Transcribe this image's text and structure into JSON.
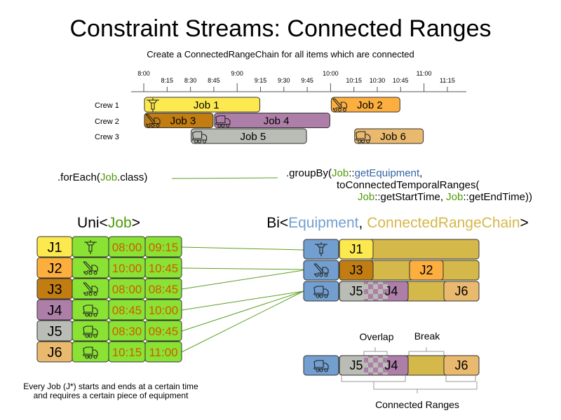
{
  "title": "Constraint Streams: Connected Ranges",
  "subtitle": "Create a ConnectedRangeChain for all items which are connected",
  "colors": {
    "job1": "#fce94f",
    "job2": "#fcaf3e",
    "job3": "#c17d11",
    "job4": "#ad7fa8",
    "job5": "#babdb6",
    "job6": "#e9b96e",
    "green": "#8ae234",
    "equipment": "#729fcf",
    "chain": "#d4b84a",
    "time": "#ce5c00",
    "code_green": "#4e9a06",
    "code_blue": "#3465a4"
  },
  "timeline": {
    "hour_ticks": [
      "8:00",
      "9:00",
      "10:00",
      "11:00"
    ],
    "quarter_ticks": [
      "8:15",
      "8:30",
      "8:45",
      "9:15",
      "9:30",
      "9:45",
      "10:15",
      "10:30",
      "10:45",
      "11:15"
    ],
    "crews": [
      "Crew 1",
      "Crew 2",
      "Crew 3"
    ],
    "jobs": [
      {
        "label": "Job 1",
        "crew": 1,
        "start": "8:00",
        "end": "9:15",
        "icon": "jackhammer-icon"
      },
      {
        "label": "Job 2",
        "crew": 1,
        "start": "10:00",
        "end": "10:45",
        "icon": "crane-truck-icon"
      },
      {
        "label": "Job 3",
        "crew": 2,
        "start": "8:00",
        "end": "8:45",
        "icon": "crane-truck-icon"
      },
      {
        "label": "Job 4",
        "crew": 2,
        "start": "8:45",
        "end": "10:00",
        "icon": "dump-truck-icon"
      },
      {
        "label": "Job 5",
        "crew": 3,
        "start": "8:30",
        "end": "9:45",
        "icon": "dump-truck-icon"
      },
      {
        "label": "Job 6",
        "crew": 3,
        "start": "10:15",
        "end": "11:00",
        "icon": "dump-truck-icon"
      }
    ]
  },
  "code": {
    "foreach_prefix": ".forEach(",
    "foreach_job": "Job",
    "foreach_suffix": ".class)",
    "groupby_prefix": ".groupBy(",
    "groupby_job": "Job",
    "groupby_sep": "::",
    "groupby_method": "getEquipment",
    "groupby_comma": ",",
    "line2": "toConnectedTemporalRanges(",
    "line3_job1": "Job",
    "line3_mid1": "::getStartTime, ",
    "line3_job2": "Job",
    "line3_end": "::getEndTime))"
  },
  "uni": {
    "title_prefix": "Uni<",
    "title_type": "Job",
    "title_suffix": ">",
    "rows": [
      {
        "id": "J1",
        "icon": "jackhammer-icon",
        "start": "08:00",
        "end": "09:15"
      },
      {
        "id": "J2",
        "icon": "crane-truck-icon",
        "start": "10:00",
        "end": "10:45"
      },
      {
        "id": "J3",
        "icon": "crane-truck-icon",
        "start": "08:00",
        "end": "08:45"
      },
      {
        "id": "J4",
        "icon": "dump-truck-icon",
        "start": "08:45",
        "end": "10:00"
      },
      {
        "id": "J5",
        "icon": "dump-truck-icon",
        "start": "08:30",
        "end": "09:45"
      },
      {
        "id": "J6",
        "icon": "dump-truck-icon",
        "start": "10:15",
        "end": "11:00"
      }
    ],
    "caption_line1": "Every Job (J*) starts and ends at a certain time",
    "caption_line2": "and requires a certain piece of equipment"
  },
  "bi": {
    "title_prefix": "Bi<",
    "title_type1": "Equipment",
    "title_sep": ", ",
    "title_type2": "ConnectedRangeChain",
    "title_suffix": ">",
    "rows": [
      {
        "equipment": "jackhammer-icon",
        "jobs": [
          "J1"
        ]
      },
      {
        "equipment": "crane-truck-icon",
        "jobs": [
          "J3",
          "J2"
        ]
      },
      {
        "equipment": "dump-truck-icon",
        "jobs": [
          "J5",
          "J4",
          "J6"
        ]
      }
    ]
  },
  "detail": {
    "jobs": [
      "J5",
      "J4",
      "J6"
    ],
    "overlap_label": "Overlap",
    "break_label": "Break",
    "connected_label": "Connected Ranges"
  }
}
